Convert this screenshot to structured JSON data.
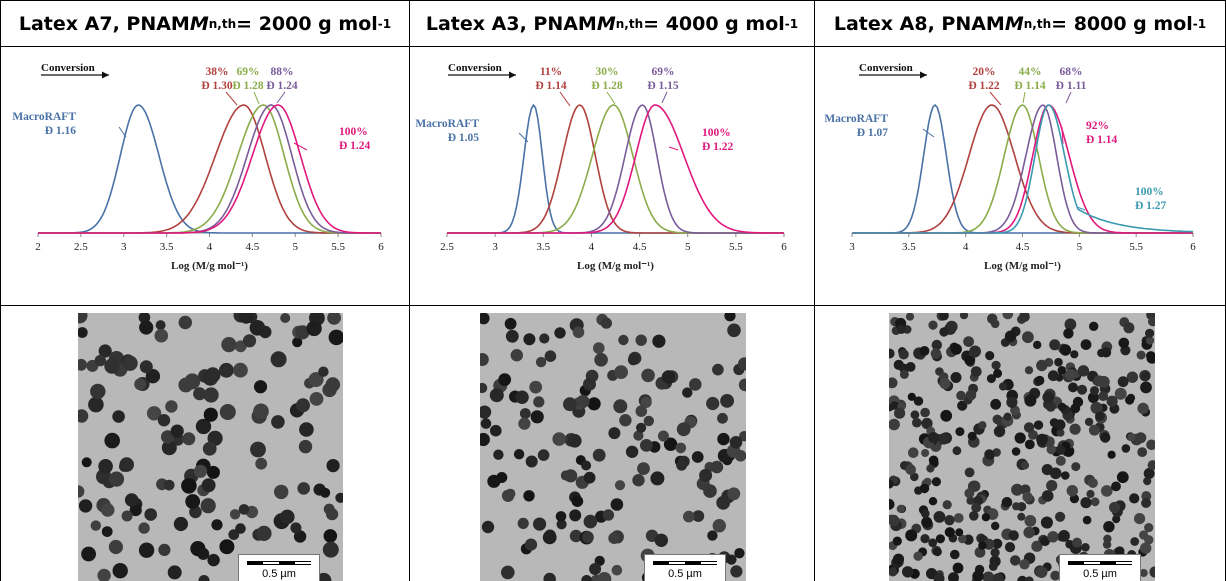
{
  "panels": [
    {
      "header": {
        "prefix": "Latex A7, PNAM ",
        "m": "M",
        "sub": "n,th",
        "eq": " = 2000 g mol",
        "sup": "-1"
      },
      "chart_data": {
        "type": "line",
        "title": "",
        "xlabel": "Log (M/g mol⁻¹)",
        "ylabel": "",
        "xlim": [
          2,
          6
        ],
        "xticks": [
          "2",
          "2.5",
          "3",
          "3.5",
          "4",
          "4.5",
          "5",
          "5.5",
          "6"
        ],
        "annotation_arrow": "Conversion",
        "series": [
          {
            "label_lines": [
              "MacroRAFT",
              "Đ 1.16"
            ],
            "color": "#4a72a6",
            "peak": 3.17,
            "sl": 0.21,
            "sr": 0.24
          },
          {
            "label_lines": [
              "38%",
              "Đ 1.30"
            ],
            "color": "#b0413e",
            "peak": 4.4,
            "sl": 0.33,
            "sr": 0.25
          },
          {
            "label_lines": [
              "69%",
              "Đ 1.28"
            ],
            "color": "#8aac4a",
            "peak": 4.63,
            "sl": 0.3,
            "sr": 0.24
          },
          {
            "label_lines": [
              "88%",
              "Đ 1.24"
            ],
            "color": "#7a5c9a",
            "peak": 4.72,
            "sl": 0.28,
            "sr": 0.24
          },
          {
            "label_lines": [
              "100%",
              "Đ 1.24"
            ],
            "color": "#e0197d",
            "peak": 4.8,
            "sl": 0.3,
            "sr": 0.26
          }
        ]
      },
      "scalebar": "0.5 µm"
    },
    {
      "header": {
        "prefix": "Latex A3, PNAM ",
        "m": "M",
        "sub": "n,th",
        "eq": " = 4000 g mol",
        "sup": "-1"
      },
      "chart_data": {
        "type": "line",
        "title": "",
        "xlabel": "Log (M/g mol⁻¹)",
        "ylabel": "",
        "xlim": [
          2.5,
          6
        ],
        "xticks": [
          "2.5",
          "3",
          "3.5",
          "4",
          "4.5",
          "5",
          "5.5",
          "6"
        ],
        "annotation_arrow": "Conversion",
        "series": [
          {
            "label_lines": [
              "MacroRAFT",
              "Đ 1.05"
            ],
            "color": "#4a72a6",
            "peak": 3.4,
            "sl": 0.1,
            "sr": 0.09
          },
          {
            "label_lines": [
              "11%",
              "Đ 1.14"
            ],
            "color": "#b0413e",
            "peak": 3.88,
            "sl": 0.18,
            "sr": 0.16
          },
          {
            "label_lines": [
              "30%",
              "Đ 1.28"
            ],
            "color": "#8aac4a",
            "peak": 4.23,
            "sl": 0.22,
            "sr": 0.2
          },
          {
            "label_lines": [
              "69%",
              "Đ 1.15"
            ],
            "color": "#7a5c9a",
            "peak": 4.53,
            "sl": 0.18,
            "sr": 0.15
          },
          {
            "label_lines": [
              "100%",
              "Đ 1.22"
            ],
            "color": "#e0197d",
            "peak": 4.66,
            "sl": 0.2,
            "sr": 0.3
          }
        ]
      },
      "scalebar": "0.5 µm"
    },
    {
      "header": {
        "prefix": "Latex A8, PNAM ",
        "m": "M",
        "sub": "n,th",
        "eq": " = 8000 g mol",
        "sup": "-1"
      },
      "chart_data": {
        "type": "line",
        "title": "",
        "xlabel": "Log (M/g mol⁻¹)",
        "ylabel": "",
        "xlim": [
          3,
          6
        ],
        "xticks": [
          "3",
          "3.5",
          "4",
          "4.5",
          "5",
          "5.5",
          "6"
        ],
        "annotation_arrow": "Conversion",
        "series": [
          {
            "label_lines": [
              "MacroRAFT",
              "Đ 1.07"
            ],
            "color": "#4a72a6",
            "peak": 3.73,
            "sl": 0.1,
            "sr": 0.1
          },
          {
            "label_lines": [
              "20%",
              "Đ 1.22"
            ],
            "color": "#b0413e",
            "peak": 4.23,
            "sl": 0.2,
            "sr": 0.2
          },
          {
            "label_lines": [
              "44%",
              "Đ 1.14"
            ],
            "color": "#8aac4a",
            "peak": 4.5,
            "sl": 0.16,
            "sr": 0.14
          },
          {
            "label_lines": [
              "68%",
              "Đ 1.11"
            ],
            "color": "#7a5c9a",
            "peak": 4.68,
            "sl": 0.15,
            "sr": 0.12
          },
          {
            "label_lines": [
              "92%",
              "Đ 1.14"
            ],
            "color": "#e0197d",
            "peak": 4.73,
            "sl": 0.14,
            "sr": 0.18
          },
          {
            "label_lines": [
              "100%",
              "Đ 1.27"
            ],
            "color": "#3a9ab0",
            "peak": 4.73,
            "sl": 0.12,
            "sr": 0.14
          }
        ]
      },
      "scalebar": "0.5 µm"
    }
  ],
  "colors": {
    "border": "#000000",
    "tem_background": "#b8b8b8",
    "particle": "#222222"
  }
}
